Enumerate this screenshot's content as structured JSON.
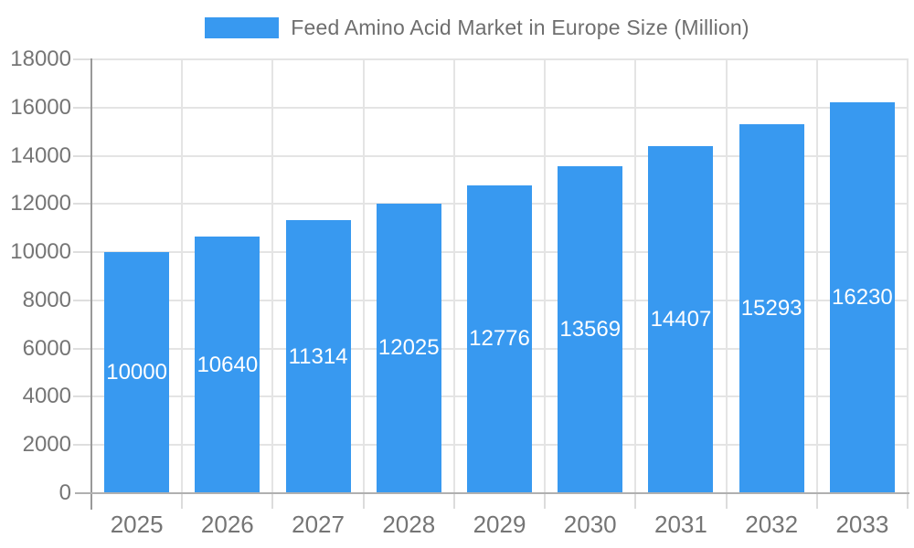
{
  "chart_data": {
    "type": "bar",
    "title": "Feed Amino Acid Market in Europe Size (Million)",
    "categories": [
      "2025",
      "2026",
      "2027",
      "2028",
      "2029",
      "2030",
      "2031",
      "2032",
      "2033"
    ],
    "values": [
      10000,
      10640,
      11314,
      12025,
      12776,
      13569,
      14407,
      15293,
      16230
    ],
    "series_name": "Feed Amino Acid Market in Europe Size (Million)",
    "xlabel": "",
    "ylabel": "",
    "ylim": [
      0,
      18000
    ],
    "ytick_step": 2000,
    "grid": true,
    "legend_position": "top",
    "data_labels": "inside-center",
    "colors": {
      "bar": "#3899f0",
      "bar_label_text": "#ffffff",
      "axis_text": "#757575",
      "legend_text": "#6e6e6e",
      "gridline": "#e4e4e4",
      "y_axis_line": "#999999",
      "x_axis_line": "#b0b0b0"
    }
  }
}
